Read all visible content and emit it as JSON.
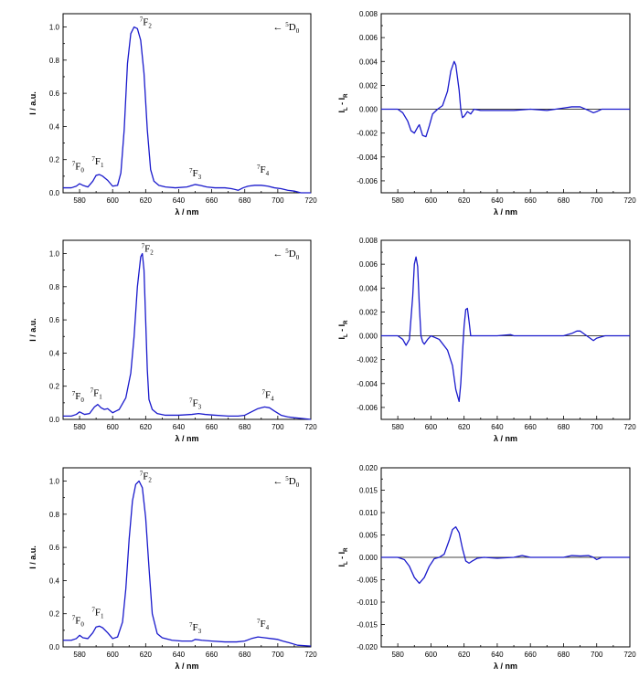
{
  "chart_data": [
    {
      "panel": "row1-left",
      "type": "line",
      "xlabel": "λ / nm",
      "ylabel": "I / a.u.",
      "xlim": [
        570,
        720
      ],
      "ylim": [
        0,
        1.08
      ],
      "xticks": [
        580,
        600,
        620,
        640,
        660,
        680,
        700,
        720
      ],
      "yticks": [
        0.0,
        0.2,
        0.4,
        0.6,
        0.8,
        1.0
      ],
      "ydecimals": 1,
      "color": "#1a1acc",
      "x": [
        570,
        575,
        578,
        580,
        582,
        585,
        588,
        590,
        592,
        594,
        597,
        600,
        603,
        605,
        607,
        609,
        611,
        613,
        615,
        617,
        619,
        621,
        623,
        625,
        628,
        632,
        638,
        645,
        650,
        653,
        657,
        662,
        668,
        672,
        676,
        679,
        682,
        686,
        690,
        694,
        698,
        702,
        706,
        710,
        714,
        720
      ],
      "y": [
        0.03,
        0.03,
        0.04,
        0.055,
        0.045,
        0.035,
        0.07,
        0.105,
        0.11,
        0.1,
        0.075,
        0.04,
        0.045,
        0.12,
        0.38,
        0.78,
        0.96,
        1.0,
        0.99,
        0.92,
        0.72,
        0.38,
        0.14,
        0.07,
        0.045,
        0.035,
        0.03,
        0.035,
        0.05,
        0.045,
        0.035,
        0.03,
        0.03,
        0.025,
        0.015,
        0.03,
        0.04,
        0.045,
        0.045,
        0.04,
        0.03,
        0.025,
        0.015,
        0.01,
        0.0,
        0.0
      ],
      "annotations": [
        {
          "base": "F",
          "sup": "7",
          "sub": "0",
          "x": 579,
          "y": 0.14
        },
        {
          "base": "F",
          "sup": "7",
          "sub": "1",
          "x": 591,
          "y": 0.17
        },
        {
          "base": "F",
          "sup": "7",
          "sub": "2",
          "x": 620,
          "y": 1.01
        },
        {
          "base": "F",
          "sup": "7",
          "sub": "3",
          "x": 650,
          "y": 0.1
        },
        {
          "base": "F",
          "sup": "7",
          "sub": "4",
          "x": 691,
          "y": 0.12
        },
        {
          "base": "D",
          "sup": "5",
          "sub": "0",
          "x": 705,
          "y": 0.98,
          "prefix": "← "
        }
      ]
    },
    {
      "panel": "row1-right",
      "type": "line",
      "xlabel": "λ / nm",
      "ylabel": "I",
      "ylabel_sub_a": "L",
      "ylabel_mid": " - I",
      "ylabel_sub_b": "R",
      "xlim": [
        570,
        720
      ],
      "ylim": [
        -0.007,
        0.008
      ],
      "xticks": [
        580,
        600,
        620,
        640,
        660,
        680,
        700,
        720
      ],
      "yticks": [
        -0.006,
        -0.004,
        -0.002,
        0.0,
        0.002,
        0.004,
        0.006,
        0.008
      ],
      "ydecimals": 3,
      "zero_line": true,
      "color": "#1a1acc",
      "x": [
        570,
        580,
        583,
        586,
        588,
        590,
        592,
        593,
        595,
        597,
        599,
        601,
        604,
        607,
        610,
        612,
        614,
        615,
        617,
        618,
        619,
        620,
        622,
        624,
        626,
        630,
        640,
        650,
        660,
        670,
        680,
        685,
        690,
        695,
        698,
        700,
        703,
        710,
        720
      ],
      "y": [
        0.0,
        0.0,
        -0.0003,
        -0.001,
        -0.0018,
        -0.002,
        -0.0015,
        -0.0013,
        -0.0022,
        -0.0023,
        -0.0014,
        -0.0004,
        0.0,
        0.0003,
        0.0015,
        0.0032,
        0.004,
        0.0037,
        0.0016,
        0.0,
        -0.0007,
        -0.0006,
        -0.0002,
        -0.0004,
        0.0,
        -0.0001,
        -0.0001,
        -0.0001,
        0.0,
        -0.0001,
        0.0001,
        0.0002,
        0.0002,
        -0.0001,
        -0.0003,
        -0.0002,
        0.0,
        0.0,
        0.0
      ]
    },
    {
      "panel": "row2-left",
      "type": "line",
      "xlabel": "λ / nm",
      "ylabel": "I / a.u.",
      "xlim": [
        570,
        720
      ],
      "ylim": [
        0,
        1.08
      ],
      "xticks": [
        580,
        600,
        620,
        640,
        660,
        680,
        700,
        720
      ],
      "yticks": [
        0.0,
        0.2,
        0.4,
        0.6,
        0.8,
        1.0
      ],
      "ydecimals": 1,
      "color": "#1a1acc",
      "x": [
        570,
        575,
        578,
        580,
        583,
        586,
        589,
        591,
        593,
        595,
        597,
        600,
        604,
        608,
        611,
        613,
        615,
        617,
        618,
        619,
        620,
        621,
        622,
        624,
        627,
        632,
        640,
        648,
        652,
        656,
        662,
        670,
        676,
        680,
        684,
        688,
        692,
        695,
        698,
        702,
        706,
        710,
        720
      ],
      "y": [
        0.02,
        0.02,
        0.03,
        0.045,
        0.03,
        0.035,
        0.075,
        0.09,
        0.07,
        0.06,
        0.065,
        0.04,
        0.06,
        0.13,
        0.28,
        0.5,
        0.8,
        0.98,
        1.0,
        0.9,
        0.6,
        0.3,
        0.12,
        0.06,
        0.035,
        0.025,
        0.025,
        0.03,
        0.035,
        0.03,
        0.025,
        0.02,
        0.02,
        0.025,
        0.045,
        0.065,
        0.075,
        0.07,
        0.05,
        0.025,
        0.015,
        0.01,
        0.0
      ],
      "annotations": [
        {
          "base": "F",
          "sup": "7",
          "sub": "0",
          "x": 579,
          "y": 0.12
        },
        {
          "base": "F",
          "sup": "7",
          "sub": "1",
          "x": 590,
          "y": 0.14
        },
        {
          "base": "F",
          "sup": "7",
          "sub": "2",
          "x": 621,
          "y": 1.01
        },
        {
          "base": "F",
          "sup": "7",
          "sub": "3",
          "x": 650,
          "y": 0.08
        },
        {
          "base": "F",
          "sup": "7",
          "sub": "4",
          "x": 694,
          "y": 0.13
        },
        {
          "base": "D",
          "sup": "5",
          "sub": "0",
          "x": 705,
          "y": 0.98,
          "prefix": "← "
        }
      ]
    },
    {
      "panel": "row2-right",
      "type": "line",
      "xlabel": "λ / nm",
      "ylabel": "I",
      "ylabel_sub_a": "L",
      "ylabel_mid": " - I",
      "ylabel_sub_b": "R",
      "xlim": [
        570,
        720
      ],
      "ylim": [
        -0.007,
        0.008
      ],
      "xticks": [
        580,
        600,
        620,
        640,
        660,
        680,
        700,
        720
      ],
      "yticks": [
        -0.006,
        -0.004,
        -0.002,
        0.0,
        0.002,
        0.004,
        0.006,
        0.008
      ],
      "ydecimals": 3,
      "zero_line": true,
      "color": "#1a1acc",
      "x": [
        570,
        580,
        583,
        585,
        587,
        589,
        590,
        591,
        592,
        593,
        594,
        595,
        596,
        598,
        600,
        605,
        610,
        613,
        615,
        617,
        618,
        619,
        620,
        621,
        622,
        623,
        624,
        626,
        630,
        640,
        648,
        650,
        660,
        670,
        680,
        685,
        688,
        690,
        693,
        696,
        698,
        700,
        705,
        720
      ],
      "y": [
        0.0,
        0.0,
        -0.0003,
        -0.0008,
        -0.0003,
        0.0033,
        0.006,
        0.0066,
        0.0058,
        0.0025,
        0.0,
        -0.0005,
        -0.0007,
        -0.0003,
        0.0,
        -0.0003,
        -0.0012,
        -0.0025,
        -0.0045,
        -0.0055,
        -0.004,
        -0.0015,
        0.0008,
        0.0022,
        0.0023,
        0.0012,
        0.0,
        0.0,
        0.0,
        0.0,
        0.0001,
        0.0,
        0.0,
        0.0,
        0.0,
        0.0002,
        0.0004,
        0.0004,
        0.0001,
        -0.0002,
        -0.0004,
        -0.0002,
        0.0,
        0.0
      ]
    },
    {
      "panel": "row3-left",
      "type": "line",
      "xlabel": "λ / nm",
      "ylabel": "I / a.u.",
      "xlim": [
        570,
        720
      ],
      "ylim": [
        0,
        1.08
      ],
      "xticks": [
        580,
        600,
        620,
        640,
        660,
        680,
        700,
        720
      ],
      "yticks": [
        0.0,
        0.2,
        0.4,
        0.6,
        0.8,
        1.0
      ],
      "ydecimals": 1,
      "color": "#1a1acc",
      "x": [
        570,
        575,
        578,
        580,
        582,
        585,
        588,
        590,
        592,
        594,
        597,
        600,
        603,
        606,
        608,
        610,
        612,
        614,
        616,
        618,
        620,
        622,
        624,
        627,
        630,
        636,
        642,
        648,
        650,
        654,
        660,
        668,
        675,
        680,
        684,
        688,
        692,
        696,
        700,
        703,
        707,
        712,
        720
      ],
      "y": [
        0.04,
        0.04,
        0.05,
        0.07,
        0.055,
        0.05,
        0.085,
        0.12,
        0.125,
        0.115,
        0.085,
        0.05,
        0.06,
        0.15,
        0.35,
        0.65,
        0.88,
        0.98,
        1.0,
        0.96,
        0.78,
        0.48,
        0.2,
        0.08,
        0.055,
        0.04,
        0.035,
        0.035,
        0.045,
        0.04,
        0.035,
        0.03,
        0.03,
        0.035,
        0.05,
        0.06,
        0.055,
        0.05,
        0.045,
        0.035,
        0.025,
        0.01,
        0.005
      ],
      "annotations": [
        {
          "base": "F",
          "sup": "7",
          "sub": "0",
          "x": 579,
          "y": 0.14
        },
        {
          "base": "F",
          "sup": "7",
          "sub": "1",
          "x": 591,
          "y": 0.19
        },
        {
          "base": "F",
          "sup": "7",
          "sub": "2",
          "x": 620,
          "y": 1.01
        },
        {
          "base": "F",
          "sup": "7",
          "sub": "3",
          "x": 650,
          "y": 0.1
        },
        {
          "base": "F",
          "sup": "7",
          "sub": "4",
          "x": 691,
          "y": 0.12
        },
        {
          "base": "D",
          "sup": "5",
          "sub": "0",
          "x": 705,
          "y": 0.98,
          "prefix": "← "
        }
      ]
    },
    {
      "panel": "row3-right",
      "type": "line",
      "xlabel": "λ / nm",
      "ylabel": "I",
      "ylabel_sub_a": "L",
      "ylabel_mid": " - I",
      "ylabel_sub_b": "R",
      "xlim": [
        570,
        720
      ],
      "ylim": [
        -0.02,
        0.02
      ],
      "xticks": [
        580,
        600,
        620,
        640,
        660,
        680,
        700,
        720
      ],
      "yticks": [
        -0.02,
        -0.015,
        -0.01,
        -0.005,
        0.0,
        0.005,
        0.01,
        0.015,
        0.02
      ],
      "ydecimals": 3,
      "zero_line": true,
      "color": "#1a1acc",
      "x": [
        570,
        580,
        584,
        587,
        590,
        593,
        596,
        599,
        602,
        605,
        608,
        611,
        613,
        615,
        617,
        619,
        621,
        623,
        625,
        628,
        632,
        640,
        650,
        655,
        660,
        670,
        680,
        685,
        690,
        695,
        698,
        700,
        703,
        710,
        720
      ],
      "y": [
        0.0,
        0.0,
        -0.0005,
        -0.002,
        -0.0045,
        -0.0058,
        -0.0045,
        -0.002,
        -0.0003,
        0.0,
        0.0007,
        0.0038,
        0.0062,
        0.0068,
        0.0055,
        0.002,
        -0.0008,
        -0.0013,
        -0.0008,
        -0.0002,
        0.0,
        -0.0002,
        0.0,
        0.0004,
        0.0,
        0.0,
        0.0,
        0.0004,
        0.0003,
        0.0004,
        0.0,
        -0.0005,
        0.0,
        0.0,
        0.0
      ]
    }
  ]
}
